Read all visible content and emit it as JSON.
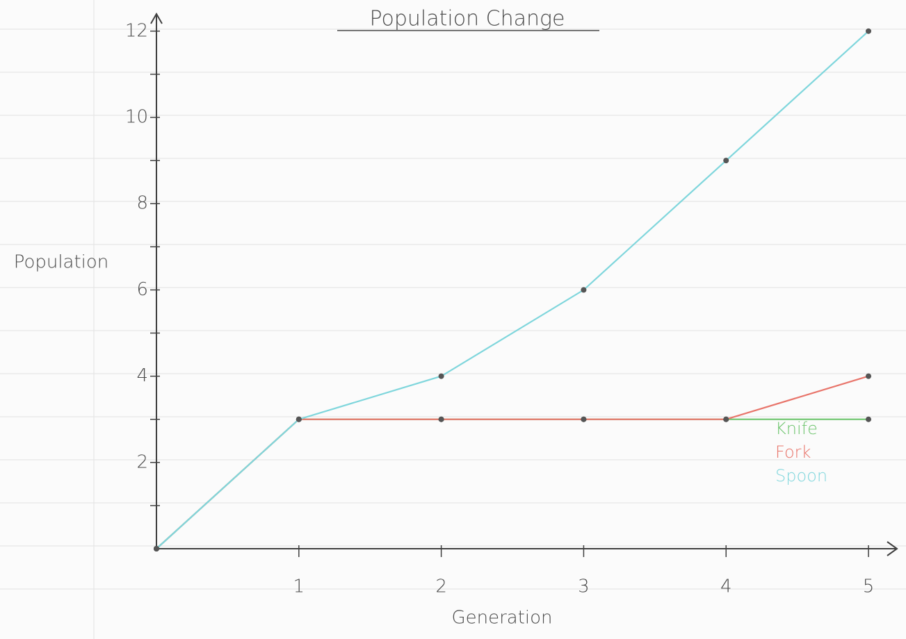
{
  "chart_data": {
    "type": "line",
    "title": "Population Change",
    "x_label": "Generation",
    "y_label": "Population",
    "x": [
      0,
      1,
      2,
      3,
      4,
      5
    ],
    "series": [
      {
        "name": "Knife",
        "color": "#6cc46c",
        "values": [
          0,
          3,
          3,
          3,
          3,
          3
        ]
      },
      {
        "name": "Fork",
        "color": "#e8746a",
        "values": [
          0,
          3,
          3,
          3,
          3,
          4
        ]
      },
      {
        "name": "Spoon",
        "color": "#7fd6dc",
        "values": [
          0,
          3,
          4,
          6,
          9,
          12
        ]
      }
    ],
    "xlim": [
      0,
      5.2
    ],
    "xticks": [
      1,
      2,
      3,
      4,
      5
    ],
    "ylim": [
      0,
      12.4
    ],
    "yticks": [
      2,
      4,
      6,
      8,
      10,
      12
    ],
    "minor_yticks": [
      1,
      3,
      5,
      7,
      9,
      11
    ],
    "legend": "right"
  }
}
